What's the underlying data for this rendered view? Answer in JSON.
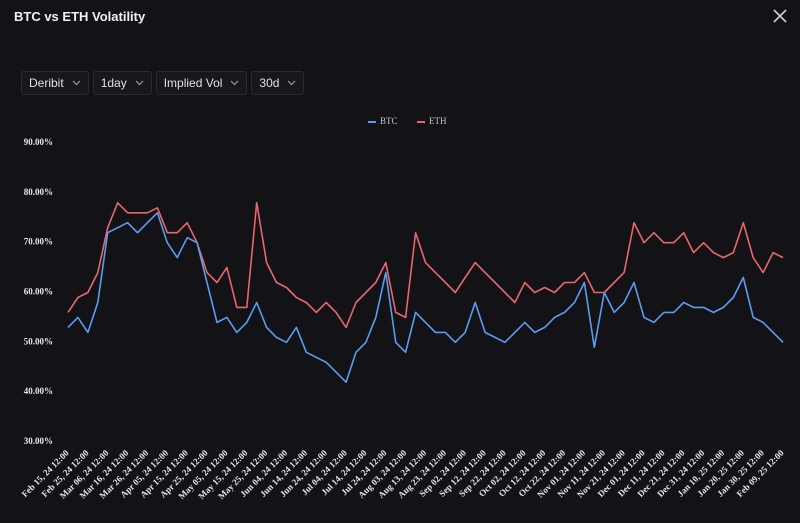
{
  "header": {
    "title": "BTC vs ETH Volatility"
  },
  "controls": [
    "Deribit",
    "1day",
    "Implied Vol",
    "30d"
  ],
  "chart_data": {
    "type": "line",
    "categories": [
      "Feb 15, 24 12:00",
      null,
      "Feb 25, 24 12:00",
      null,
      "Mar 06, 24 12:00",
      null,
      "Mar 16, 24 12:00",
      null,
      "Mar 26, 24 12:00",
      null,
      "Apr 05, 24 12:00",
      null,
      "Apr 15, 24 12:00",
      null,
      "Apr 25, 24 12:00",
      null,
      "May 05, 24 12:00",
      null,
      "May 15, 24 12:00",
      null,
      "May 25, 24 12:00",
      null,
      "Jun 04, 24 12:00",
      null,
      "Jun 14, 24 12:00",
      null,
      "Jun 24, 24 12:00",
      null,
      "Jul 04, 24 12:00",
      null,
      "Jul 14, 24 12:00",
      null,
      "Jul 24, 24 12:00",
      null,
      "Aug 03, 24 12:00",
      null,
      "Aug 13, 24 12:00",
      null,
      "Aug 23, 24 12:00",
      null,
      "Sep 02, 24 12:00",
      null,
      "Sep 12, 24 12:00",
      null,
      "Sep 22, 24 12:00",
      null,
      "Oct 02, 24 12:00",
      null,
      "Oct 12, 24 12:00",
      null,
      "Oct 22, 24 12:00",
      null,
      "Nov 01, 24 12:00",
      null,
      "Nov 11, 24 12:00",
      null,
      "Nov 21, 24 12:00",
      null,
      "Dec 01, 24 12:00",
      null,
      "Dec 11, 24 12:00",
      null,
      "Dec 21, 24 12:00",
      null,
      "Dec 31, 24 12:00",
      null,
      "Jan 10, 25 12:00",
      null,
      "Jan 20, 25 12:00",
      null,
      "Jan 30, 25 12:00",
      null,
      "Feb 09, 25 12:00"
    ],
    "series": [
      {
        "name": "BTC",
        "color": "#5b9cf0",
        "values": [
          53,
          55,
          52,
          58,
          72,
          73,
          74,
          72,
          74,
          76,
          70,
          67,
          71,
          70,
          62,
          54,
          55,
          52,
          54,
          58,
          53,
          51,
          50,
          53,
          48,
          47,
          46,
          44,
          42,
          48,
          50,
          55,
          64,
          50,
          48,
          56,
          54,
          52,
          52,
          50,
          52,
          58,
          52,
          51,
          50,
          52,
          54,
          52,
          53,
          55,
          56,
          58,
          62,
          49,
          60,
          56,
          58,
          62,
          55,
          54,
          56,
          56,
          58,
          57,
          57,
          56,
          57,
          59,
          63,
          55,
          54,
          52,
          50
        ]
      },
      {
        "name": "ETH",
        "color": "#e8676b",
        "values": [
          56,
          59,
          60,
          64,
          73,
          78,
          76,
          76,
          76,
          77,
          72,
          72,
          74,
          70,
          64,
          62,
          65,
          57,
          57,
          78,
          66,
          62,
          61,
          59,
          58,
          56,
          58,
          56,
          53,
          58,
          60,
          62,
          66,
          56,
          55,
          72,
          66,
          64,
          62,
          60,
          63,
          66,
          64,
          62,
          60,
          58,
          62,
          60,
          61,
          60,
          62,
          62,
          64,
          60,
          60,
          62,
          64,
          74,
          70,
          72,
          70,
          70,
          72,
          68,
          70,
          68,
          67,
          68,
          74,
          67,
          64,
          68,
          67
        ]
      }
    ],
    "ylim": [
      30,
      90
    ],
    "yticks": [
      {
        "value": 30,
        "label": "30.00%"
      },
      {
        "value": 40,
        "label": "40.00%"
      },
      {
        "value": 50,
        "label": "50.00%"
      },
      {
        "value": 60,
        "label": "60.00%"
      },
      {
        "value": 70,
        "label": "70.00%"
      },
      {
        "value": 80,
        "label": "80.00%"
      },
      {
        "value": 90,
        "label": "90.00%"
      }
    ],
    "grid": false,
    "legend": "top"
  }
}
